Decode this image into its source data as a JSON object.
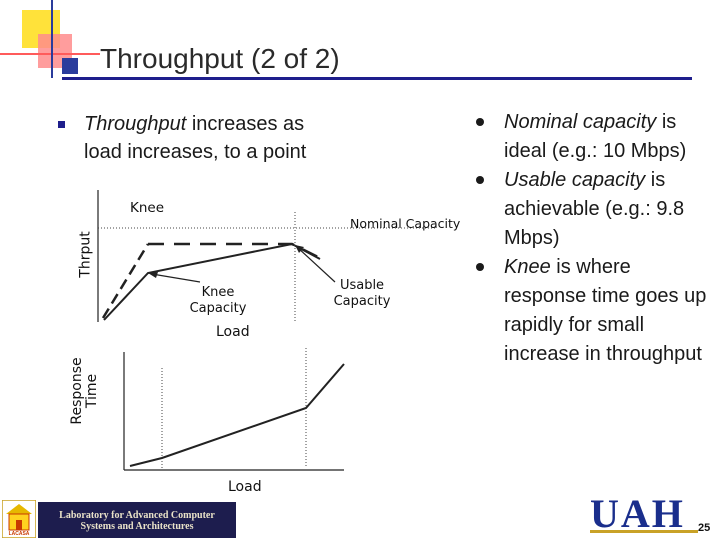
{
  "slide": {
    "title": "Throughput (2 of 2)",
    "page_number": "25"
  },
  "left_bullet": {
    "emphasis": "Throughput",
    "rest": " increases as load increases, to a point"
  },
  "right_bullets": [
    {
      "emphasis": "Nominal capacity",
      "rest": " is ideal (e.g.: 10 Mbps)"
    },
    {
      "emphasis": "Usable capacity",
      "rest": " is achievable (e.g.: 9.8 Mbps)"
    },
    {
      "emphasis": "Knee",
      "rest": " is where response time goes up rapidly for small increase in throughput"
    }
  ],
  "throughput_chart": {
    "ylabel": "Thrput",
    "xlabel": "Load",
    "knee_label": "Knee",
    "nominal_label": "Nominal Capacity",
    "usable_label": "Usable Capacity",
    "knee_capacity_label": "Knee Capacity"
  },
  "response_chart": {
    "ylabel_line1": "Response",
    "ylabel_line2": "Time",
    "xlabel": "Load"
  },
  "footer": {
    "lab_line1": "Laboratory for Advanced Computer",
    "lab_line2": "Systems and Architectures",
    "logo_text": "UAH",
    "badge_text": "LACASA"
  }
}
